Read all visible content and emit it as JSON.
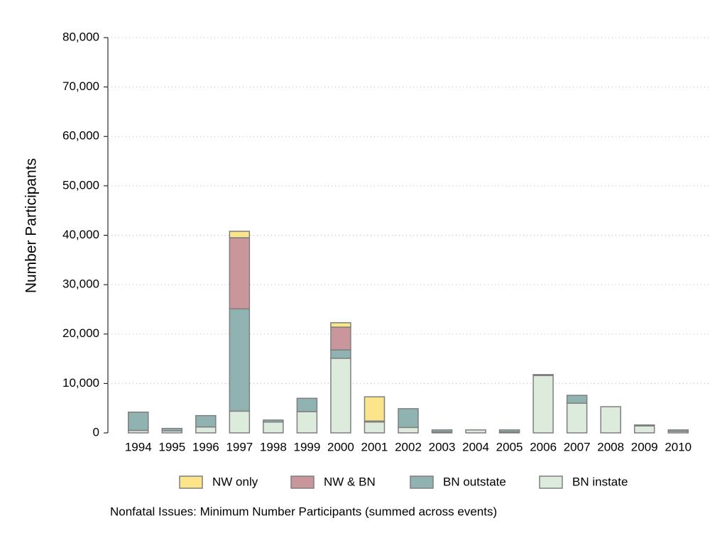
{
  "chart_data": {
    "type": "stacked-bar",
    "y_label": "Number Participants",
    "note": "Nonfatal Issues: Minimum Number Participants (summed across events)",
    "categories": [
      "1994",
      "1995",
      "1996",
      "1997",
      "1998",
      "1999",
      "2000",
      "2001",
      "2002",
      "2003",
      "2004",
      "2005",
      "2006",
      "2007",
      "2008",
      "2009",
      "2010"
    ],
    "series": [
      {
        "name": "NW only",
        "color": "#fbe48a",
        "values": [
          0,
          0,
          0,
          1300,
          0,
          0,
          900,
          4900,
          0,
          0,
          0,
          0,
          0,
          0,
          0,
          0,
          0
        ]
      },
      {
        "name": "NW & BN",
        "color": "#c9969c",
        "values": [
          0,
          0,
          0,
          14400,
          0,
          0,
          4600,
          0,
          0,
          0,
          0,
          0,
          0,
          0,
          0,
          0,
          0
        ]
      },
      {
        "name": "BN outstate",
        "color": "#90b2b1",
        "values": [
          3700,
          500,
          2300,
          20700,
          400,
          2700,
          1700,
          200,
          3800,
          400,
          0,
          400,
          200,
          1600,
          0,
          200,
          300
        ]
      },
      {
        "name": "BN instate",
        "color": "#dcebdc",
        "values": [
          500,
          400,
          1200,
          4400,
          2200,
          4300,
          15100,
          2200,
          1100,
          200,
          600,
          200,
          11600,
          6000,
          5300,
          1400,
          300
        ]
      }
    ],
    "ylim": [
      0,
      80000
    ],
    "yticks": [
      0,
      {
        "value": 10000,
        "label": "10,000"
      },
      {
        "value": 20000,
        "label": "20,000"
      },
      {
        "value": 30000,
        "label": "30,000"
      },
      {
        "value": 40000,
        "label": "40,000"
      },
      {
        "value": 50000,
        "label": "50,000"
      },
      {
        "value": 60000,
        "label": "60,000"
      },
      {
        "value": 70000,
        "label": "70,000"
      },
      {
        "value": 80000,
        "label": "80,000"
      }
    ],
    "grid": true
  }
}
